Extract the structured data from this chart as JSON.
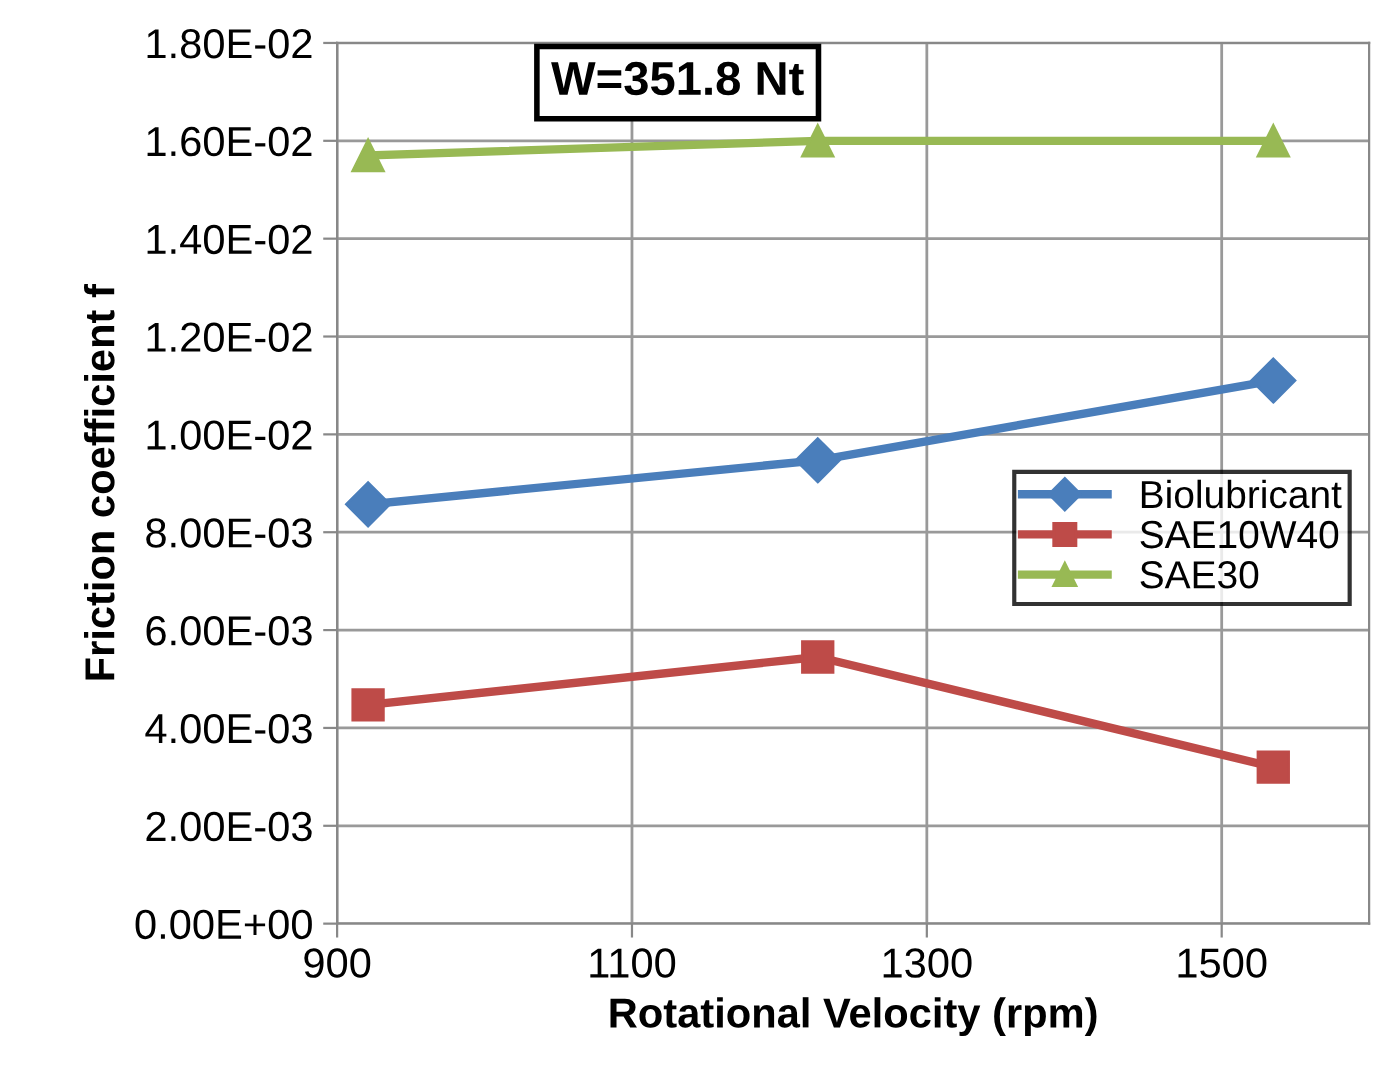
{
  "chart_data": {
    "type": "line",
    "xlabel": "Rotational Velocity (rpm)",
    "ylabel": "Friction coefficient f",
    "annotations": [
      "W=351.8 Nt"
    ],
    "x": [
      921,
      1226,
      1535
    ],
    "series": [
      {
        "name": "Biolubricant",
        "color": "#4a7ebb",
        "marker": "diamond",
        "values": [
          0.00857,
          0.00947,
          0.0111
        ]
      },
      {
        "name": "SAE10W40",
        "color": "#be4b48",
        "marker": "square",
        "values": [
          0.00447,
          0.00545,
          0.0032
        ]
      },
      {
        "name": "SAE30",
        "color": "#98b954",
        "marker": "triangle",
        "values": [
          0.0157,
          0.016,
          0.016
        ]
      }
    ],
    "xlim": [
      900,
      1600
    ],
    "xticks": [
      900,
      1100,
      1300,
      1500
    ],
    "ylim": [
      0,
      0.018
    ],
    "yticks": [
      {
        "value": 0,
        "label": "0.00E+00"
      },
      {
        "value": 0.002,
        "label": "2.00E-03"
      },
      {
        "value": 0.004,
        "label": "4.00E-03"
      },
      {
        "value": 0.006,
        "label": "6.00E-03"
      },
      {
        "value": 0.008,
        "label": "8.00E-03"
      },
      {
        "value": 0.01,
        "label": "1.00E-02"
      },
      {
        "value": 0.012,
        "label": "1.20E-02"
      },
      {
        "value": 0.014,
        "label": "1.40E-02"
      },
      {
        "value": 0.016,
        "label": "1.60E-02"
      },
      {
        "value": 0.018,
        "label": "1.80E-02"
      }
    ],
    "grid": true,
    "legend": "right"
  }
}
